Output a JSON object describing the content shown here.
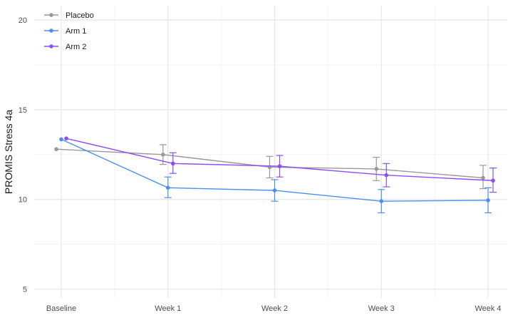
{
  "chart_data": {
    "type": "line",
    "ylabel": "PROMIS Stress 4a",
    "xlabel": "",
    "categories": [
      "Baseline",
      "Week 1",
      "Week 2",
      "Week 3",
      "Week 4"
    ],
    "ylim": [
      4.5,
      20.8
    ],
    "yticks": [
      5,
      10,
      15,
      20
    ],
    "grid": true,
    "legend_position": "top-left",
    "series": [
      {
        "name": "Placebo",
        "color": "#999999",
        "values": [
          12.8,
          12.5,
          11.8,
          11.7,
          11.2
        ],
        "error_low": [
          null,
          11.95,
          11.2,
          11.05,
          10.6
        ],
        "error_high": [
          null,
          13.05,
          12.4,
          12.35,
          11.9
        ]
      },
      {
        "name": "Arm 1",
        "color": "#4a8ff0",
        "values": [
          13.35,
          10.65,
          10.5,
          9.9,
          9.95
        ],
        "error_low": [
          null,
          10.1,
          9.9,
          9.25,
          9.25
        ],
        "error_high": [
          null,
          11.25,
          11.1,
          10.55,
          10.65
        ]
      },
      {
        "name": "Arm 2",
        "color": "#8a4ff0",
        "values": [
          13.4,
          12.0,
          11.85,
          11.35,
          11.05
        ],
        "error_low": [
          null,
          11.45,
          11.25,
          10.7,
          10.4
        ],
        "error_high": [
          null,
          12.6,
          12.45,
          12.0,
          11.75
        ]
      }
    ]
  }
}
